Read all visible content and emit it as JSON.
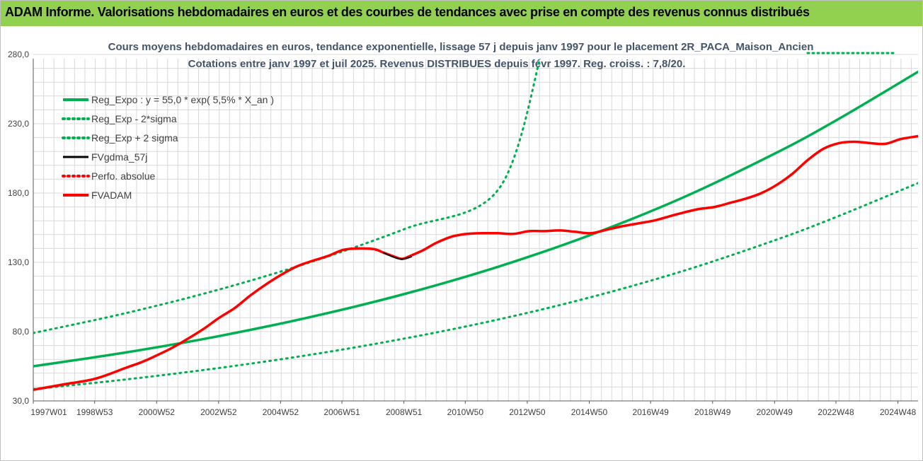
{
  "report_title": "ADAM Informe. Valorisations hebdomadaires en euros et des courbes de tendances avec prise en compte des revenus connus distribués",
  "colors": {
    "header_bg": "#92d050",
    "reg_green": "#00b050",
    "fvadam_red": "#ff0000",
    "fvgdma_black": "#000000",
    "grid": "#d9d9d9",
    "title_text": "#44546a"
  },
  "chart_data": {
    "type": "line",
    "title": "Cours moyens hebdomadaires en euros, tendance exponentielle, lissage 57 j depuis janv 1997 pour le placement 2R_PACA_Maison_Ancien",
    "subtitle": "Cotations entre janv 1997 et juil 2025. Revenus DISTRIBUES depuis févr 1997. Reg. croiss. : 7,8/20.",
    "xlabel": "",
    "ylabel": "",
    "x_range": [
      1997.0,
      2025.55
    ],
    "ylim": [
      30,
      280
    ],
    "y_ticks": [
      "30,0",
      "80,0",
      "130,0",
      "180,0",
      "230,0",
      "280,0"
    ],
    "x_ticks": [
      {
        "label": "1997W01",
        "x": 1997.0
      },
      {
        "label": "1998W53",
        "x": 1998.98
      },
      {
        "label": "2000W52",
        "x": 2000.98
      },
      {
        "label": "2002W52",
        "x": 2002.98
      },
      {
        "label": "2004W52",
        "x": 2004.98
      },
      {
        "label": "2006W51",
        "x": 2006.96
      },
      {
        "label": "2008W51",
        "x": 2008.96
      },
      {
        "label": "2010W50",
        "x": 2010.94
      },
      {
        "label": "2012W50",
        "x": 2012.94
      },
      {
        "label": "2014W50",
        "x": 2014.94
      },
      {
        "label": "2016W49",
        "x": 2016.92
      },
      {
        "label": "2018W49",
        "x": 2018.92
      },
      {
        "label": "2020W49",
        "x": 2020.92
      },
      {
        "label": "2022W48",
        "x": 2022.9
      },
      {
        "label": "2024W48",
        "x": 2024.9
      }
    ],
    "grid": true,
    "legend_position": "top-left",
    "series": [
      {
        "name": "Reg_Expo : y = 55,0 * exp( 5,5% *  X_an )",
        "style": "solid",
        "color": "#00b050",
        "x": [
          1997.0,
          2000.0,
          2003.0,
          2006.0,
          2009.0,
          2012.0,
          2015.0,
          2018.0,
          2021.0,
          2023.0,
          2025.55
        ],
        "y": [
          55.0,
          65.0,
          76.8,
          90.8,
          107.3,
          126.8,
          149.9,
          177.1,
          209.3,
          233.6,
          267.5
        ]
      },
      {
        "name": "Reg_Exp - 2*sigma",
        "style": "dotted",
        "color": "#00b050",
        "x": [
          1997.0,
          2000.0,
          2003.0,
          2006.0,
          2009.0,
          2012.0,
          2015.0,
          2018.0,
          2021.0,
          2023.0,
          2025.55
        ],
        "y": [
          38.5,
          45.5,
          53.8,
          63.5,
          75.1,
          88.7,
          104.9,
          124.0,
          146.5,
          163.5,
          187.2
        ]
      },
      {
        "name": "Reg_Exp + 2 sigma",
        "style": "dotted",
        "color": "#00b050",
        "x": [
          1997.0,
          2000.0,
          2003.0,
          2006.0,
          2009.0,
          2012.0,
          2013.4
        ],
        "y": [
          79.0,
          93.4,
          110.4,
          130.5,
          154.2,
          182.3,
          281.0
        ]
      },
      {
        "name": "FVgdma_57j",
        "style": "solid",
        "color": "#000000",
        "x": [
          2008.3,
          2008.6,
          2008.9,
          2009.2
        ],
        "y": [
          137.0,
          134.0,
          132.2,
          134.0
        ]
      },
      {
        "name": "Perfo. absolue",
        "style": "dotted",
        "color": "#ff0000",
        "x": [],
        "y": []
      },
      {
        "name": "FVADAM",
        "style": "solid",
        "color": "#ff0000",
        "x": [
          1997.0,
          1998.0,
          1999.0,
          2000.0,
          2000.5,
          2001.0,
          2001.5,
          2002.0,
          2002.5,
          2003.0,
          2003.5,
          2004.0,
          2004.5,
          2005.0,
          2005.5,
          2006.0,
          2006.5,
          2007.0,
          2007.5,
          2008.0,
          2008.3,
          2008.6,
          2008.9,
          2009.2,
          2009.6,
          2010.0,
          2010.5,
          2011.0,
          2011.5,
          2012.0,
          2012.5,
          2013.0,
          2013.5,
          2014.0,
          2014.5,
          2015.0,
          2015.5,
          2016.0,
          2016.5,
          2017.0,
          2017.5,
          2018.0,
          2018.5,
          2019.0,
          2019.5,
          2020.0,
          2020.5,
          2021.0,
          2021.5,
          2022.0,
          2022.5,
          2023.0,
          2023.5,
          2024.0,
          2024.5,
          2025.0,
          2025.55
        ],
        "y": [
          38.0,
          42.0,
          46.0,
          54.0,
          58.0,
          63.0,
          68.5,
          75.0,
          82.0,
          90.0,
          97.0,
          106.0,
          114.0,
          121.0,
          127.0,
          131.0,
          134.5,
          139.0,
          140.0,
          139.5,
          137.0,
          134.5,
          132.5,
          135.0,
          139.0,
          144.0,
          148.5,
          150.5,
          151.0,
          151.0,
          150.5,
          152.5,
          152.5,
          153.0,
          152.0,
          151.0,
          153.5,
          156.0,
          158.0,
          160.0,
          163.0,
          166.0,
          168.5,
          170.0,
          173.0,
          176.0,
          180.0,
          186.0,
          194.0,
          204.0,
          212.0,
          216.0,
          217.0,
          216.0,
          215.5,
          219.0,
          221.0
        ]
      }
    ]
  }
}
